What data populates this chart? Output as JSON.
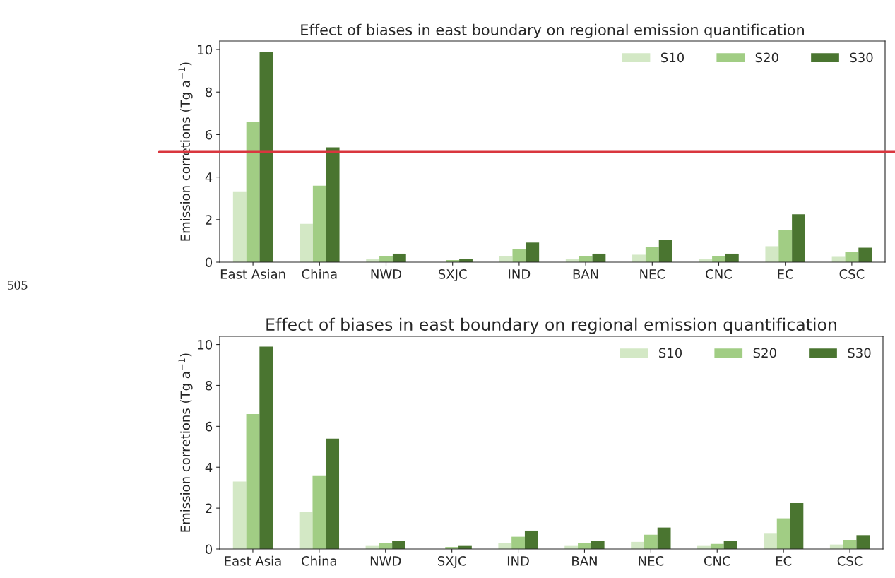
{
  "chart_data": [
    {
      "type": "bar",
      "title": "Effect of biases in east boundary on regional emission quantification",
      "ylabel": "Emission corretions (Tg a$^{−1}$)",
      "categories": [
        "East Asian",
        "China",
        "NWD",
        "SXJC",
        "IND",
        "BAN",
        "NEC",
        "CNC",
        "EC",
        "CSC"
      ],
      "series": [
        {
          "name": "S10",
          "color": "#d3e8c5",
          "values": [
            3.3,
            1.8,
            0.15,
            null,
            0.3,
            0.15,
            0.35,
            0.15,
            0.75,
            0.25
          ]
        },
        {
          "name": "S20",
          "color": "#a1cd84",
          "values": [
            6.6,
            3.6,
            0.28,
            0.1,
            0.6,
            0.28,
            0.7,
            0.28,
            1.5,
            0.48
          ]
        },
        {
          "name": "S30",
          "color": "#4a7530",
          "values": [
            9.9,
            5.4,
            0.4,
            0.15,
            0.92,
            0.4,
            1.05,
            0.4,
            2.25,
            0.68
          ]
        }
      ],
      "ylim": [
        0,
        10.4
      ],
      "yticks": [
        0,
        2,
        4,
        6,
        8,
        10
      ],
      "legend": "top right",
      "grid": false,
      "ref_lines": [
        {
          "axis": "y",
          "value": 5.2,
          "color": "#d9363e"
        }
      ],
      "annotations": [
        "505"
      ]
    },
    {
      "type": "bar",
      "title": "Effect of biases in east boundary on regional emission quantification",
      "ylabel": "Emission corretions (Tg a$^{−1}$)",
      "categories": [
        "East Asia",
        "China",
        "NWD",
        "SXJC",
        "IND",
        "BAN",
        "NEC",
        "CNC",
        "EC",
        "CSC"
      ],
      "series": [
        {
          "name": "S10",
          "color": "#d3e8c5",
          "values": [
            3.3,
            1.8,
            0.15,
            null,
            0.3,
            0.15,
            0.35,
            0.15,
            0.75,
            0.22
          ]
        },
        {
          "name": "S20",
          "color": "#a1cd84",
          "values": [
            6.6,
            3.6,
            0.28,
            0.1,
            0.6,
            0.28,
            0.7,
            0.25,
            1.5,
            0.45
          ]
        },
        {
          "name": "S30",
          "color": "#4a7530",
          "values": [
            9.9,
            5.4,
            0.4,
            0.15,
            0.9,
            0.4,
            1.05,
            0.38,
            2.25,
            0.68
          ]
        }
      ],
      "ylim": [
        0,
        10.4
      ],
      "yticks": [
        0,
        2,
        4,
        6,
        8,
        10
      ],
      "legend": "top right",
      "grid": false
    }
  ]
}
